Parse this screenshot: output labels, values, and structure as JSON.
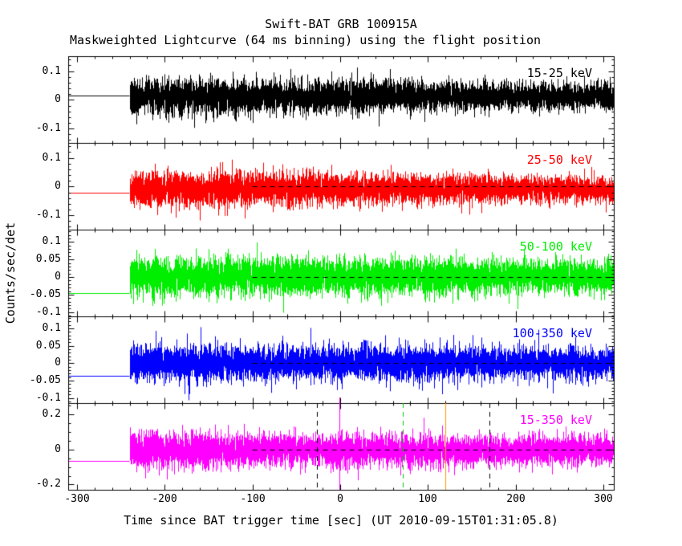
{
  "chart_data": {
    "type": "line",
    "title": "Swift-BAT GRB 100915A",
    "subtitle": "Maskweighted Lightcurve (64 ms binning) using the flight position",
    "xlabel": "Time since BAT trigger time [sec] (UT 2010-09-15T01:31:05.8)",
    "ylabel": "Counts/sec/det",
    "xlim": [
      -310,
      312
    ],
    "x_ticks": [
      -300,
      -200,
      -100,
      0,
      100,
      200,
      300
    ],
    "x_minor_step": 20,
    "binning_ms": 64,
    "data_start": -240,
    "zero_dash_start": -100,
    "seed": 100915,
    "panels": [
      {
        "label": "15-25 keV",
        "color": "#000000",
        "ylim": [
          -0.15,
          0.152
        ],
        "yticks": [
          0.1,
          0,
          -0.1
        ],
        "ytick_labels": [
          "0.1",
          "0",
          "-0.1"
        ],
        "y_minor_step": 0.02,
        "noise_sigma": 0.031,
        "noise_mean": 0.012,
        "pre_trigger_level": 0.015,
        "amp_taper": 0.28
      },
      {
        "label": "25-50 keV",
        "color": "#ff0000",
        "ylim": [
          -0.15,
          0.152
        ],
        "yticks": [
          0.1,
          0,
          -0.1
        ],
        "ytick_labels": [
          "0.1",
          "0",
          "-0.1"
        ],
        "y_minor_step": 0.02,
        "noise_sigma": 0.031,
        "noise_mean": -0.008,
        "pre_trigger_level": -0.022,
        "amp_taper": 0.3
      },
      {
        "label": "50-100 keV",
        "color": "#00ee00",
        "ylim": [
          -0.112,
          0.135
        ],
        "yticks": [
          0.1,
          0.05,
          0,
          -0.05,
          -0.1
        ],
        "ytick_labels": [
          "0.1",
          "0.05",
          "0",
          "-0.05",
          "-0.1"
        ],
        "y_minor_step": 0.01,
        "noise_sigma": 0.027,
        "noise_mean": 0.002,
        "pre_trigger_level": -0.045,
        "amp_taper": 0.15
      },
      {
        "label": "100-350 keV",
        "color": "#0000ff",
        "ylim": [
          -0.115,
          0.135
        ],
        "yticks": [
          0.1,
          0.05,
          0,
          -0.05,
          -0.1
        ],
        "ytick_labels": [
          "0.1",
          "0.05",
          "0",
          "-0.05",
          "-0.1"
        ],
        "y_minor_step": 0.01,
        "noise_sigma": 0.026,
        "noise_mean": 0.0,
        "pre_trigger_level": -0.036,
        "amp_taper": 0.12
      },
      {
        "label": "15-350 keV",
        "color": "#ff00ff",
        "ylim": [
          -0.23,
          0.265
        ],
        "yticks": [
          0.2,
          0,
          -0.2
        ],
        "ytick_labels": [
          "0.2",
          "0",
          "-0.2"
        ],
        "y_minor_step": 0.05,
        "noise_sigma": 0.05,
        "noise_mean": -0.004,
        "pre_trigger_level": -0.067,
        "amp_taper": 0.2
      }
    ],
    "event_lines": [
      {
        "x": -26,
        "color": "#000000",
        "style": "dashed"
      },
      {
        "x": -1,
        "color": "#ff00ff",
        "style": "solid",
        "overshoot": true
      },
      {
        "x": 71,
        "color": "#00cc00",
        "style": "dashed"
      },
      {
        "x": 120,
        "color": "#ff9900",
        "style": "solid"
      },
      {
        "x": 170,
        "color": "#000000",
        "style": "dashed"
      }
    ]
  }
}
